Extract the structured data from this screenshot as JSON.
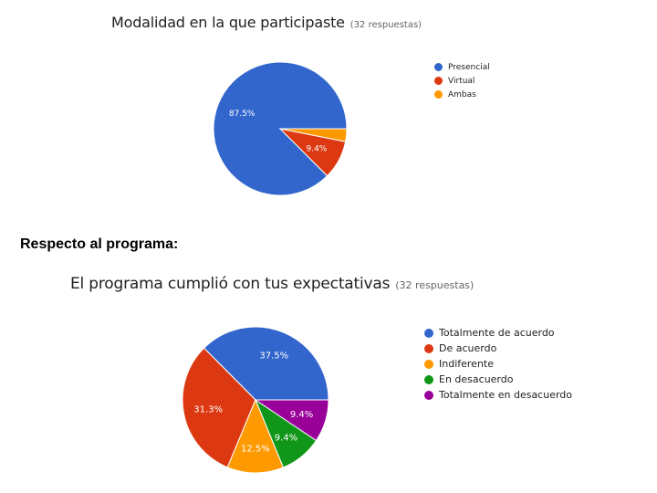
{
  "section_heading": "Respecto al programa:",
  "chart_data": [
    {
      "type": "pie",
      "title": "Modalidad en la que participaste",
      "subtitle": "(32 respuestas)",
      "categories": [
        "Presencial",
        "Virtual",
        "Ambas"
      ],
      "values": [
        87.5,
        9.4,
        3.1
      ],
      "labels": [
        "87.5%",
        "9.4%",
        ""
      ],
      "colors": [
        "#3366cc",
        "#dc3912",
        "#ff9900"
      ],
      "legend": "right"
    },
    {
      "type": "pie",
      "title": "El programa cumplió con tus expectativas",
      "subtitle": "(32 respuestas)",
      "categories": [
        "Totalmente de acuerdo",
        "De acuerdo",
        "Indiferente",
        "En desacuerdo",
        "Totalmente en desacuerdo"
      ],
      "values": [
        37.5,
        31.3,
        12.5,
        9.4,
        9.4
      ],
      "labels": [
        "37.5%",
        "31.3%",
        "12.5%",
        "9.4%",
        "9.4%"
      ],
      "colors": [
        "#3366cc",
        "#dc3912",
        "#ff9900",
        "#109618",
        "#990099"
      ],
      "legend": "right"
    }
  ]
}
